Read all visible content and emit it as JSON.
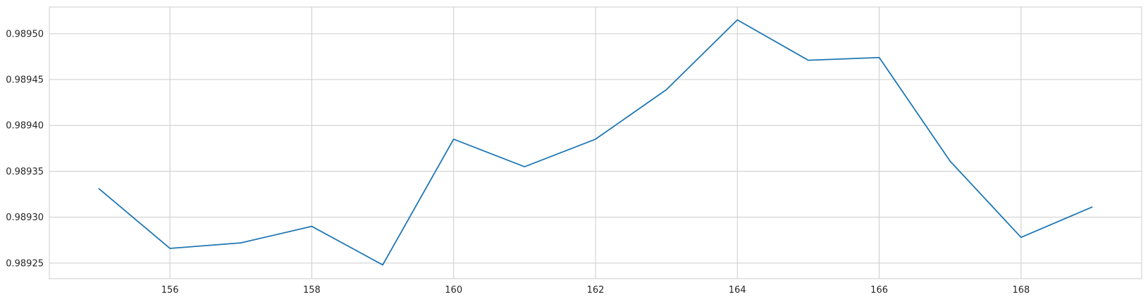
{
  "chart_data": {
    "type": "line",
    "title": "",
    "xlabel": "",
    "ylabel": "",
    "x": [
      155,
      156,
      157,
      158,
      159,
      160,
      161,
      162,
      163,
      164,
      165,
      166,
      167,
      168,
      169
    ],
    "series": [
      {
        "values": [
          0.989331,
          0.989266,
          0.989272,
          0.98929,
          0.989248,
          0.989385,
          0.989355,
          0.989385,
          0.989439,
          0.989515,
          0.989471,
          0.989474,
          0.989361,
          0.989278,
          0.989311
        ],
        "color": "#1f77b4"
      }
    ],
    "xlim": [
      154.3,
      169.7
    ],
    "ylim": [
      0.989233,
      0.989529
    ],
    "xticks": [
      156,
      158,
      160,
      162,
      164,
      166,
      168
    ],
    "xtick_labels": [
      "156",
      "158",
      "160",
      "162",
      "164",
      "166",
      "168"
    ],
    "yticks": [
      0.98925,
      0.9893,
      0.98935,
      0.9894,
      0.98945,
      0.9895
    ],
    "ytick_labels": [
      "0.98925",
      "0.98930",
      "0.98935",
      "0.98940",
      "0.98945",
      "0.98950"
    ],
    "grid": true,
    "style": "whitegrid",
    "colors": {
      "grid": "#cccccc",
      "axes_edge": "#cccccc",
      "tick_text": "#262626",
      "line": "#1f77b4"
    }
  }
}
